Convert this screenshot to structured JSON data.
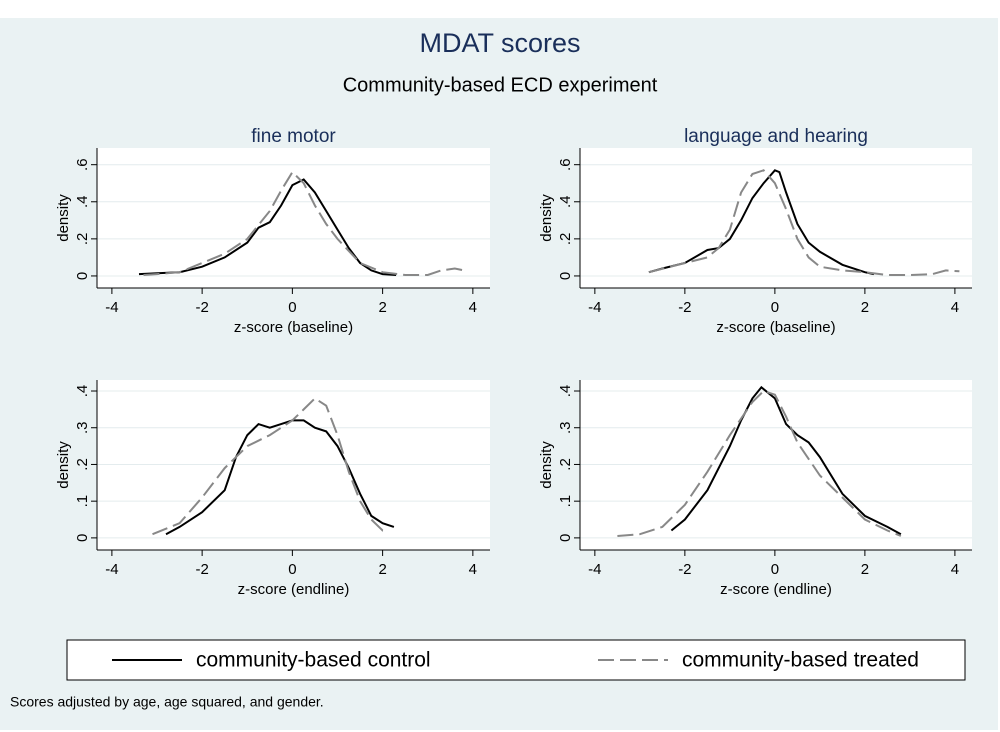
{
  "title": "MDAT scores",
  "subtitle": "Community-based ECD experiment",
  "note": "Scores adjusted by age, age squared, and gender.",
  "chart_data": [
    {
      "type": "line",
      "title": "fine motor",
      "xlabel": "z-score (baseline)",
      "ylabel": "density",
      "xlim": [
        -4.33,
        4.38
      ],
      "ylim": [
        -0.065,
        0.69
      ],
      "xticks": [
        -4,
        -2,
        0,
        2,
        4
      ],
      "yticks": [
        0,
        {
          "value": 0.2,
          "label": ".2"
        },
        {
          "value": 0.4,
          "label": ".4"
        },
        {
          "value": 0.6,
          "label": ".6"
        }
      ],
      "grid": true,
      "series": [
        {
          "name": "community-based control",
          "color": "#000000",
          "dashed": false,
          "x": [
            -3.4,
            -3,
            -2.5,
            -2,
            -1.5,
            -1,
            -0.75,
            -0.5,
            -0.25,
            0,
            0.25,
            0.5,
            0.75,
            1,
            1.25,
            1.5,
            1.75,
            2,
            2.3
          ],
          "values": [
            0.01,
            0.015,
            0.02,
            0.05,
            0.1,
            0.18,
            0.26,
            0.29,
            0.38,
            0.49,
            0.52,
            0.45,
            0.35,
            0.25,
            0.15,
            0.07,
            0.03,
            0.01,
            0.005
          ]
        },
        {
          "name": "community-based treated",
          "color": "#888888",
          "dashed": true,
          "x": [
            -3.3,
            -3,
            -2.5,
            -2,
            -1.5,
            -1,
            -0.5,
            -0.25,
            0,
            0.25,
            0.5,
            0.75,
            1,
            1.5,
            2,
            2.5,
            3,
            3.3,
            3.6,
            3.8
          ],
          "values": [
            0.005,
            0.01,
            0.02,
            0.07,
            0.12,
            0.2,
            0.35,
            0.46,
            0.56,
            0.5,
            0.38,
            0.28,
            0.2,
            0.07,
            0.02,
            0.005,
            0.005,
            0.03,
            0.04,
            0.03
          ]
        }
      ]
    },
    {
      "type": "line",
      "title": "language and hearing",
      "xlabel": "z-score (baseline)",
      "ylabel": "density",
      "xlim": [
        -4.33,
        4.38
      ],
      "ylim": [
        -0.065,
        0.69
      ],
      "xticks": [
        -4,
        -2,
        0,
        2,
        4
      ],
      "yticks": [
        0,
        {
          "value": 0.2,
          "label": ".2"
        },
        {
          "value": 0.4,
          "label": ".4"
        },
        {
          "value": 0.6,
          "label": ".6"
        }
      ],
      "grid": true,
      "series": [
        {
          "name": "community-based control",
          "color": "#000000",
          "dashed": false,
          "x": [
            -2.8,
            -2.5,
            -2,
            -1.5,
            -1.25,
            -1,
            -0.75,
            -0.5,
            -0.25,
            0,
            0.1,
            0.25,
            0.5,
            0.75,
            1,
            1.5,
            2,
            2.2
          ],
          "values": [
            0.02,
            0.04,
            0.07,
            0.14,
            0.15,
            0.2,
            0.3,
            0.42,
            0.5,
            0.57,
            0.56,
            0.45,
            0.28,
            0.18,
            0.13,
            0.06,
            0.02,
            0.01
          ]
        },
        {
          "name": "community-based treated",
          "color": "#888888",
          "dashed": true,
          "x": [
            -2.8,
            -2,
            -1.5,
            -1.25,
            -1,
            -0.75,
            -0.5,
            -0.25,
            0,
            0.25,
            0.5,
            0.75,
            1,
            1.5,
            2,
            2.5,
            3,
            3.5,
            3.8,
            4.1
          ],
          "values": [
            0.02,
            0.07,
            0.1,
            0.15,
            0.25,
            0.45,
            0.55,
            0.57,
            0.5,
            0.36,
            0.2,
            0.1,
            0.05,
            0.03,
            0.02,
            0.005,
            0.005,
            0.01,
            0.03,
            0.025
          ]
        }
      ]
    },
    {
      "type": "line",
      "xlabel": "z-score (endline)",
      "ylabel": "density",
      "xlim": [
        -4.33,
        4.38
      ],
      "ylim": [
        -0.033,
        0.43
      ],
      "xticks": [
        -4,
        -2,
        0,
        2,
        4
      ],
      "yticks": [
        0,
        {
          "value": 0.1,
          "label": ".1"
        },
        {
          "value": 0.2,
          "label": ".2"
        },
        {
          "value": 0.3,
          "label": ".3"
        },
        {
          "value": 0.4,
          "label": ".4"
        }
      ],
      "grid": true,
      "series": [
        {
          "name": "community-based control",
          "color": "#000000",
          "dashed": false,
          "x": [
            -2.8,
            -2.5,
            -2,
            -1.5,
            -1.25,
            -1,
            -0.75,
            -0.5,
            -0.25,
            0,
            0.25,
            0.5,
            0.75,
            1,
            1.25,
            1.5,
            1.75,
            2,
            2.25
          ],
          "values": [
            0.01,
            0.03,
            0.07,
            0.13,
            0.22,
            0.28,
            0.31,
            0.3,
            0.31,
            0.32,
            0.32,
            0.3,
            0.29,
            0.25,
            0.19,
            0.12,
            0.06,
            0.04,
            0.03
          ]
        },
        {
          "name": "community-based treated",
          "color": "#888888",
          "dashed": true,
          "x": [
            -3.1,
            -2.5,
            -2,
            -1.5,
            -1,
            -0.5,
            0,
            0.25,
            0.5,
            0.75,
            1,
            1.25,
            1.5,
            1.75,
            2,
            2.1
          ],
          "values": [
            0.01,
            0.04,
            0.11,
            0.19,
            0.25,
            0.28,
            0.32,
            0.35,
            0.38,
            0.36,
            0.28,
            0.18,
            0.1,
            0.05,
            0.02,
            0.02
          ]
        }
      ]
    },
    {
      "type": "line",
      "xlabel": "z-score (endline)",
      "ylabel": "density",
      "xlim": [
        -4.33,
        4.38
      ],
      "ylim": [
        -0.033,
        0.43
      ],
      "xticks": [
        -4,
        -2,
        0,
        2,
        4
      ],
      "yticks": [
        0,
        {
          "value": 0.1,
          "label": ".1"
        },
        {
          "value": 0.2,
          "label": ".2"
        },
        {
          "value": 0.3,
          "label": ".3"
        },
        {
          "value": 0.4,
          "label": ".4"
        }
      ],
      "grid": true,
      "series": [
        {
          "name": "community-based control",
          "color": "#000000",
          "dashed": false,
          "x": [
            -2.3,
            -2,
            -1.5,
            -1,
            -0.75,
            -0.5,
            -0.3,
            0,
            0.25,
            0.5,
            0.75,
            1,
            1.5,
            2,
            2.5,
            2.8
          ],
          "values": [
            0.02,
            0.05,
            0.13,
            0.25,
            0.32,
            0.38,
            0.41,
            0.38,
            0.31,
            0.28,
            0.26,
            0.22,
            0.12,
            0.06,
            0.03,
            0.01
          ]
        },
        {
          "name": "community-based treated",
          "color": "#888888",
          "dashed": true,
          "x": [
            -3.5,
            -3,
            -2.5,
            -2,
            -1.5,
            -1,
            -0.5,
            -0.25,
            0,
            0.25,
            0.5,
            1,
            1.5,
            2,
            2.5,
            2.8
          ],
          "values": [
            0.005,
            0.01,
            0.03,
            0.09,
            0.18,
            0.28,
            0.37,
            0.4,
            0.39,
            0.33,
            0.26,
            0.17,
            0.11,
            0.05,
            0.02,
            0.005
          ]
        }
      ]
    }
  ]
}
